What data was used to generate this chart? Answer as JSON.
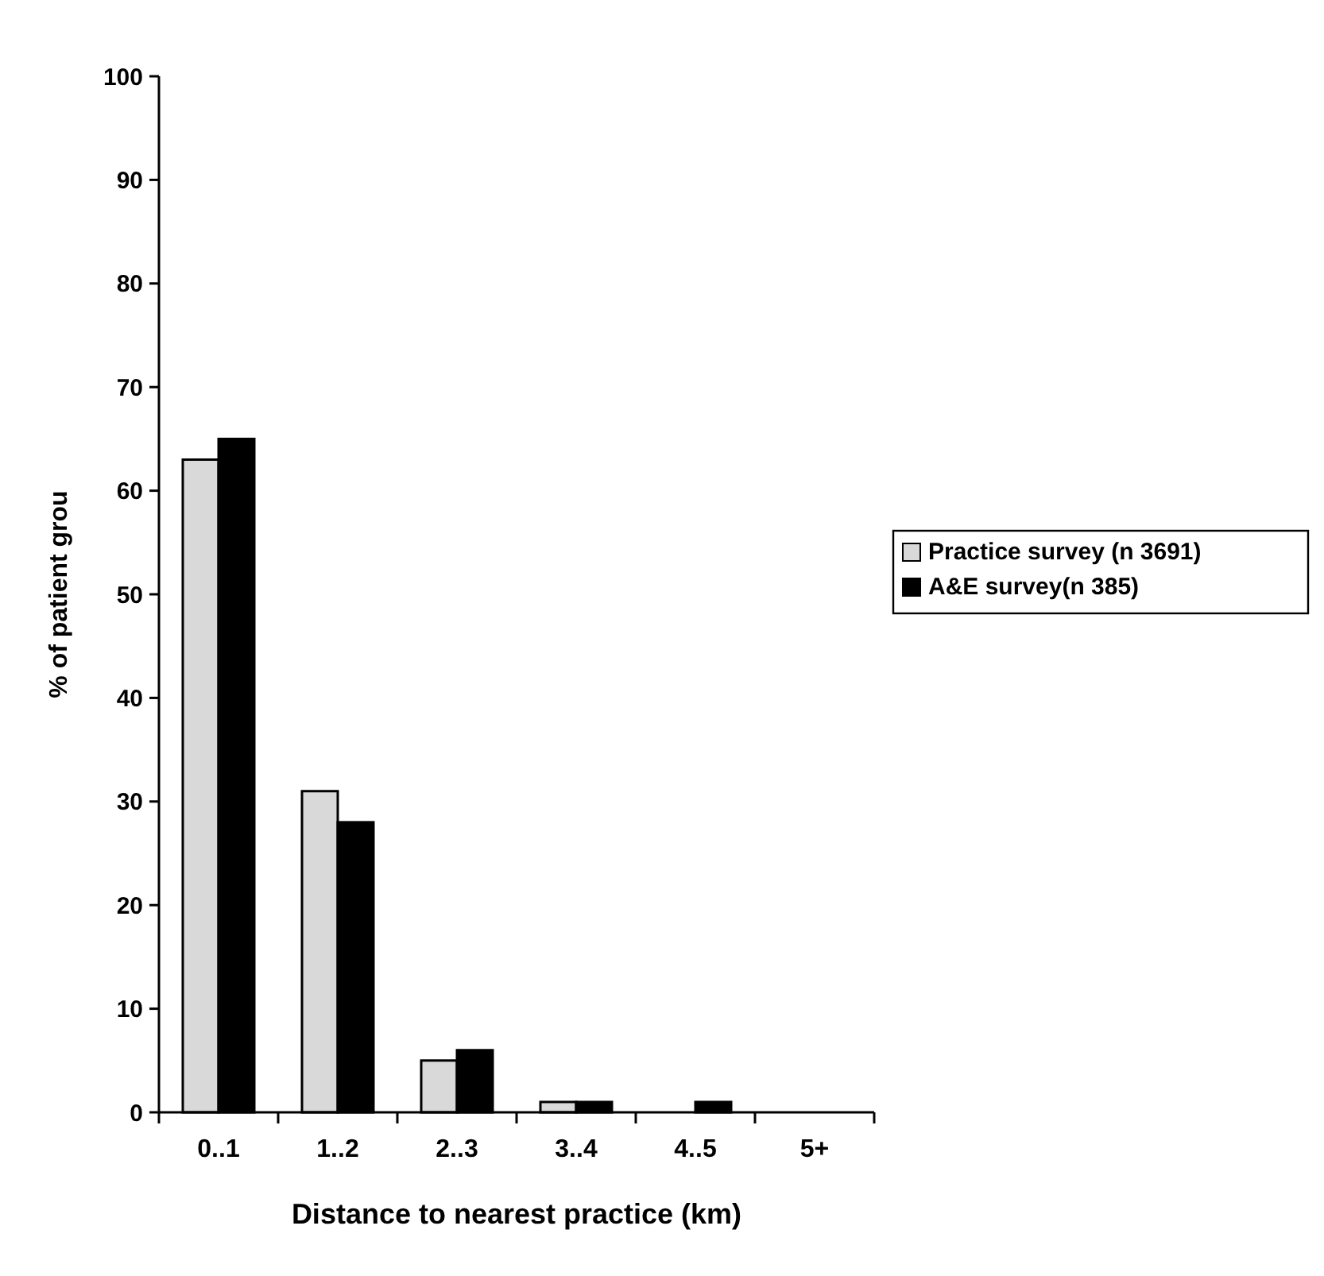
{
  "chart_data": {
    "type": "bar",
    "xlabel": "Distance to nearest practice (km)",
    "ylabel": "% of patient grou",
    "categories": [
      "0..1",
      "1..2",
      "2..3",
      "3..4",
      "4..5",
      "5+"
    ],
    "series": [
      {
        "name": "Practice survey (n 3691)",
        "color": "#d9d9d9",
        "values": [
          63,
          31,
          5,
          1,
          0,
          0
        ]
      },
      {
        "name": "A&E survey(n 385)",
        "color": "#000000",
        "values": [
          65,
          28,
          6,
          1,
          1,
          0
        ]
      }
    ],
    "ylim": [
      0,
      100
    ],
    "yticks": [
      0,
      10,
      20,
      30,
      40,
      50,
      60,
      70,
      80,
      90,
      100
    ],
    "grid": false,
    "legend": "right"
  }
}
